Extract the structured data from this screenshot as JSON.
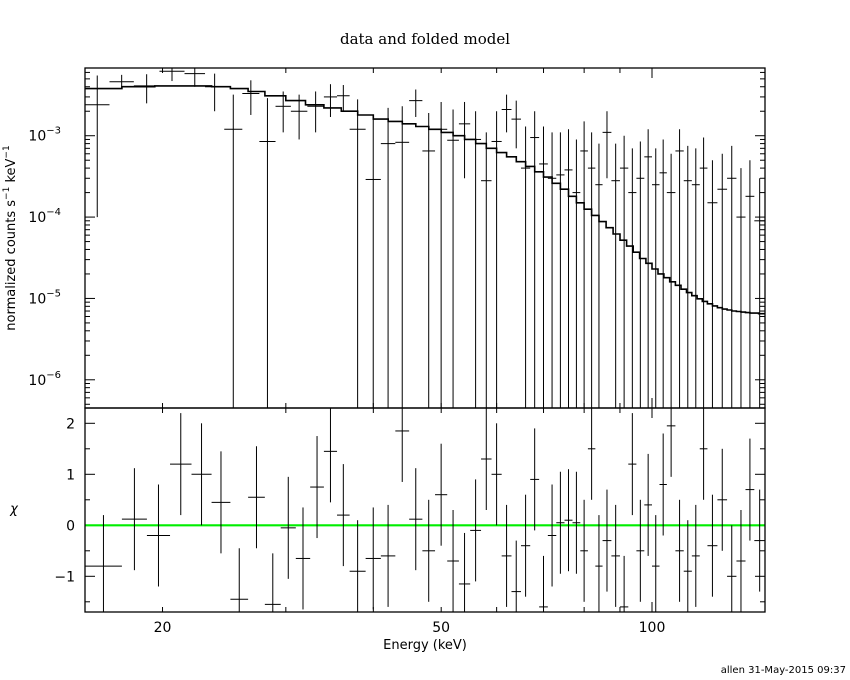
{
  "chart_data": [
    {
      "type": "line",
      "title": "data and folded model",
      "xscale": "log",
      "yscale": "log",
      "xlim": [
        15.5,
        145
      ],
      "ylim": [
        4.5e-07,
        0.0068
      ],
      "ylabel_main": "normalized counts s",
      "ylabel_sup1": "−1",
      "ylabel_mid": " keV",
      "ylabel_sup2": "−1",
      "ytick_labels": [
        {
          "value": 0.001,
          "base": "10",
          "exp": "−3"
        },
        {
          "value": 0.0001,
          "base": "10",
          "exp": "−4"
        },
        {
          "value": 1e-05,
          "base": "10",
          "exp": "−5"
        },
        {
          "value": 1e-06,
          "base": "10",
          "exp": "−6"
        }
      ],
      "series": [
        {
          "kind": "data-with-errors",
          "color": "#000000",
          "points": [
            [
              15.5,
              16.8,
              0.0024,
              0.0001,
              0.0055
            ],
            [
              16.8,
              18.2,
              0.0046,
              0.0038,
              0.0056
            ],
            [
              18.2,
              19.8,
              0.0041,
              0.0025,
              0.0057
            ],
            [
              19.8,
              21.5,
              0.0062,
              0.0047,
              0.0068
            ],
            [
              21.5,
              23.0,
              0.0058,
              0.004,
              0.0068
            ],
            [
              23.0,
              24.5,
              0.004,
              0.002,
              0.0058
            ],
            [
              24.5,
              26.0,
              0.0012,
              4e-07,
              0.0032
            ],
            [
              26.0,
              27.5,
              0.0033,
              0.0018,
              0.0048
            ],
            [
              27.5,
              29.0,
              0.00085,
              4e-07,
              0.0029
            ],
            [
              29.0,
              30.5,
              0.0023,
              0.0011,
              0.0035
            ],
            [
              30.5,
              32.2,
              0.002,
              0.0009,
              0.0032
            ],
            [
              32.2,
              34.0,
              0.0023,
              0.0011,
              0.0035
            ],
            [
              34.0,
              35.5,
              0.003,
              0.0017,
              0.0043
            ],
            [
              35.5,
              37.0,
              0.0031,
              0.002,
              0.0042
            ],
            [
              37.0,
              39.0,
              0.0012,
              4e-07,
              0.0028
            ],
            [
              39.0,
              41.0,
              0.00029,
              4e-07,
              0.0018
            ],
            [
              41.0,
              43.0,
              0.0008,
              4e-07,
              0.0022
            ],
            [
              43.0,
              45.0,
              0.00083,
              4e-07,
              0.0023
            ],
            [
              45.0,
              47.0,
              0.0027,
              0.0017,
              0.0037
            ],
            [
              47.0,
              49.0,
              0.00065,
              4e-07,
              0.0019
            ],
            [
              49.0,
              51.0,
              0.0012,
              4e-07,
              0.0026
            ],
            [
              51.0,
              53.0,
              0.00088,
              4e-07,
              0.0021
            ],
            [
              53.0,
              55.0,
              0.0014,
              0.0003,
              0.0026
            ],
            [
              55.0,
              57.0,
              0.0009,
              4e-07,
              0.002
            ],
            [
              57.0,
              59.0,
              0.00028,
              4e-07,
              0.0011
            ],
            [
              59.0,
              61.0,
              0.00085,
              4e-07,
              0.002
            ],
            [
              61.0,
              63.0,
              0.0021,
              0.0011,
              0.0032
            ],
            [
              63.0,
              65.0,
              0.0016,
              0.0007,
              0.0027
            ],
            [
              65.0,
              67.0,
              0.0004,
              4e-07,
              0.0013
            ],
            [
              67.0,
              69.0,
              0.00095,
              4e-07,
              0.002
            ],
            [
              69.0,
              71.0,
              0.00045,
              4e-07,
              0.0013
            ],
            [
              71.0,
              73.0,
              0.0003,
              4e-07,
              0.0011
            ],
            [
              73.0,
              75.0,
              0.00033,
              4e-07,
              0.0011
            ],
            [
              75.0,
              77.0,
              0.00038,
              4e-07,
              0.0012
            ],
            [
              77.0,
              79.0,
              0.0002,
              4e-07,
              0.0009
            ],
            [
              79.0,
              81.0,
              0.00065,
              4e-07,
              0.0015
            ],
            [
              81.0,
              83.0,
              0.0004,
              4e-07,
              0.0011
            ],
            [
              83.0,
              85.0,
              0.00025,
              4e-07,
              0.0008
            ],
            [
              85.0,
              87.5,
              0.0011,
              0.0003,
              0.002
            ],
            [
              87.5,
              90.0,
              0.00028,
              4e-07,
              0.0008
            ],
            [
              90.0,
              92.5,
              0.0004,
              4e-07,
              0.001
            ],
            [
              92.5,
              95.0,
              0.0002,
              4e-07,
              0.0007
            ],
            [
              95.0,
              97.5,
              0.0003,
              4e-07,
              0.00085
            ],
            [
              97.5,
              100.0,
              0.00055,
              4e-07,
              0.0012
            ],
            [
              100.0,
              102.5,
              0.00025,
              4e-07,
              0.0007
            ],
            [
              102.5,
              105.0,
              0.00035,
              4e-07,
              0.0009
            ],
            [
              105.0,
              108.0,
              0.0002,
              4e-07,
              0.0006
            ],
            [
              108.0,
              111.0,
              0.00065,
              4e-07,
              0.0012
            ],
            [
              111.0,
              114.0,
              0.00028,
              4e-07,
              0.00075
            ],
            [
              114.0,
              117.0,
              0.00025,
              4e-07,
              0.0007
            ],
            [
              117.0,
              120.0,
              0.0004,
              4e-07,
              0.00095
            ],
            [
              120.0,
              124.0,
              0.00015,
              4e-07,
              0.0005
            ],
            [
              124.0,
              128.0,
              0.00022,
              4e-07,
              0.0006
            ],
            [
              128.0,
              132.0,
              0.0003,
              4e-07,
              0.00075
            ],
            [
              132.0,
              136.0,
              0.0001,
              4e-07,
              0.0004
            ],
            [
              136.0,
              140.0,
              0.00018,
              4e-07,
              0.0005
            ],
            [
              140.0,
              145.0,
              9e-05,
              4e-07,
              0.0003
            ]
          ]
        },
        {
          "kind": "model-step",
          "color": "#000000",
          "edges": [
            15.5,
            17.5,
            19.5,
            21.5,
            23.5,
            25.0,
            26.5,
            28.0,
            30.0,
            32.0,
            34.0,
            36.0,
            38.0,
            40.0,
            42.0,
            44.0,
            46.0,
            48.0,
            50.0,
            52.0,
            54.0,
            56.0,
            58.0,
            60.0,
            62.0,
            64.0,
            66.0,
            68.0,
            70.0,
            72.0,
            74.0,
            76.0,
            78.0,
            80.0,
            82.0,
            84.0,
            86.0,
            88.0,
            90.0,
            92.0,
            94.0,
            96.0,
            98.0,
            100.0,
            102.0,
            104.0,
            106.0,
            108.0,
            110.0,
            112.0,
            114.0,
            116.0,
            118.0,
            120.0,
            122.0,
            124.0,
            126.0,
            128.0,
            130.0,
            132.0,
            134.0,
            136.0,
            138.0,
            140.0,
            142.0,
            145.0
          ],
          "values": [
            0.0038,
            0.004,
            0.0041,
            0.0041,
            0.004,
            0.0038,
            0.0035,
            0.0031,
            0.0027,
            0.0024,
            0.0022,
            0.002,
            0.0018,
            0.0016,
            0.0015,
            0.0014,
            0.0013,
            0.0012,
            0.0011,
            0.001,
            0.0009,
            0.0008,
            0.0007,
            0.00062,
            0.00055,
            0.00048,
            0.00042,
            0.00036,
            0.00031,
            0.00026,
            0.00022,
            0.00018,
            0.00015,
            0.000125,
            0.000105,
            8.8e-05,
            7.4e-05,
            6.2e-05,
            5.2e-05,
            4.4e-05,
            3.7e-05,
            3.1e-05,
            2.7e-05,
            2.3e-05,
            2e-05,
            1.8e-05,
            1.6e-05,
            1.45e-05,
            1.3e-05,
            1.18e-05,
            1.08e-05,
            9.9e-06,
            9.2e-06,
            8.6e-06,
            8.1e-06,
            7.7e-06,
            7.4e-06,
            7.2e-06,
            7e-06,
            6.9e-06,
            6.8e-06,
            6.7e-06,
            6.6e-06,
            6.6e-06,
            6.5e-06
          ]
        }
      ]
    },
    {
      "type": "line",
      "xscale": "log",
      "xlim": [
        15.5,
        145
      ],
      "ylim": [
        -1.7,
        2.3
      ],
      "xlabel": "Energy (keV)",
      "ylabel": "χ",
      "xtick_labels": [
        {
          "value": 20,
          "label": "20"
        },
        {
          "value": 50,
          "label": "50"
        },
        {
          "value": 100,
          "label": "100"
        }
      ],
      "ytick_labels": [
        {
          "value": 2,
          "label": "2"
        },
        {
          "value": 1,
          "label": "1"
        },
        {
          "value": 0,
          "label": "0"
        },
        {
          "value": -1,
          "label": "−1"
        }
      ],
      "zero_line_color": "#00ee00",
      "series": [
        {
          "kind": "residuals",
          "color": "#000000",
          "points": [
            [
              15.5,
              17.5,
              -0.8
            ],
            [
              17.5,
              19.0,
              0.12
            ],
            [
              19.0,
              20.5,
              -0.2
            ],
            [
              20.5,
              22.0,
              1.2
            ],
            [
              22.0,
              23.5,
              1.0
            ],
            [
              23.5,
              25.0,
              0.45
            ],
            [
              25.0,
              26.5,
              -1.45
            ],
            [
              26.5,
              28.0,
              0.55
            ],
            [
              28.0,
              29.5,
              -1.55
            ],
            [
              29.5,
              31.0,
              -0.05
            ],
            [
              31.0,
              32.5,
              -0.65
            ],
            [
              32.5,
              34.0,
              0.75
            ],
            [
              34.0,
              35.5,
              1.45
            ],
            [
              35.5,
              37.0,
              0.2
            ],
            [
              37.0,
              39.0,
              -0.9
            ],
            [
              39.0,
              41.0,
              -0.65
            ],
            [
              41.0,
              43.0,
              -0.6
            ],
            [
              43.0,
              45.0,
              1.85
            ],
            [
              45.0,
              47.0,
              0.12
            ],
            [
              47.0,
              49.0,
              -0.5
            ],
            [
              49.0,
              51.0,
              0.6
            ],
            [
              51.0,
              53.0,
              -0.7
            ],
            [
              53.0,
              55.0,
              -1.15
            ],
            [
              55.0,
              57.0,
              -0.1
            ],
            [
              57.0,
              59.0,
              1.3
            ],
            [
              59.0,
              61.0,
              1.0
            ],
            [
              61.0,
              63.0,
              -0.6
            ],
            [
              63.0,
              65.0,
              -1.3
            ],
            [
              65.0,
              67.0,
              -0.4
            ],
            [
              67.0,
              69.0,
              0.9
            ],
            [
              69.0,
              71.0,
              -1.6
            ],
            [
              71.0,
              73.0,
              -0.2
            ],
            [
              73.0,
              75.0,
              0.05
            ],
            [
              75.0,
              77.0,
              0.1
            ],
            [
              77.0,
              79.0,
              0.05
            ],
            [
              79.0,
              81.0,
              -0.5
            ],
            [
              81.0,
              83.0,
              1.5
            ],
            [
              83.0,
              85.0,
              -0.8
            ],
            [
              85.0,
              87.5,
              -0.3
            ],
            [
              87.5,
              90.0,
              -0.6
            ],
            [
              90.0,
              92.5,
              -1.6
            ],
            [
              92.5,
              95.0,
              1.2
            ],
            [
              95.0,
              97.5,
              -0.5
            ],
            [
              97.5,
              100.0,
              0.4
            ],
            [
              100.0,
              102.5,
              -0.8
            ],
            [
              102.5,
              105.0,
              0.8
            ],
            [
              105.0,
              108.0,
              1.95
            ],
            [
              108.0,
              111.0,
              -0.5
            ],
            [
              111.0,
              114.0,
              -0.9
            ],
            [
              114.0,
              117.0,
              -0.6
            ],
            [
              117.0,
              120.0,
              1.5
            ],
            [
              120.0,
              124.0,
              -0.4
            ],
            [
              124.0,
              128.0,
              0.5
            ],
            [
              128.0,
              132.0,
              -1.0
            ],
            [
              132.0,
              136.0,
              -0.7
            ],
            [
              136.0,
              140.0,
              0.7
            ],
            [
              140.0,
              145.0,
              -0.3
            ]
          ]
        }
      ]
    }
  ],
  "footer": {
    "stamp": "allen 31-May-2015 09:37"
  }
}
